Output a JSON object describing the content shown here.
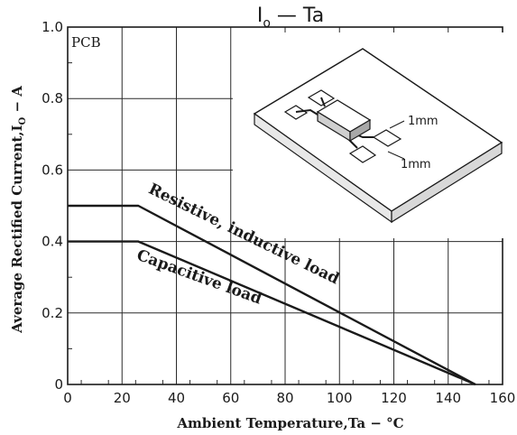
{
  "chart_data": {
    "type": "line",
    "title": {
      "main": "I",
      "sub": "o",
      "rest": "  —  Ta"
    },
    "xlabel": "Ambient Temperature,Ta − °C",
    "ylabel": {
      "main": "Average Rectified Current,I",
      "sub": "O",
      "rest": " − A"
    },
    "xlim": [
      0,
      160
    ],
    "ylim": [
      0,
      1.0
    ],
    "xticks": [
      0,
      20,
      40,
      60,
      80,
      100,
      120,
      140,
      160
    ],
    "xtick_labels": [
      "0",
      "20",
      "40",
      "60",
      "80",
      "100",
      "120",
      "140",
      "160"
    ],
    "yticks": [
      0,
      0.2,
      0.4,
      0.6,
      0.8,
      1.0
    ],
    "ytick_labels": [
      "0",
      "0.2",
      "0.4",
      "0.6",
      "0.8",
      "1.0"
    ],
    "grid": true,
    "series": [
      {
        "name": "Resistive, inductive load",
        "x": [
          0,
          26,
          150
        ],
        "y": [
          0.5,
          0.5,
          0.0
        ]
      },
      {
        "name": "Capacitive load",
        "x": [
          0,
          26,
          150
        ],
        "y": [
          0.4,
          0.4,
          0.0
        ]
      }
    ],
    "annotations": {
      "board_label": "PCB",
      "pad_dim_1": "1mm",
      "pad_dim_2": "1mm"
    },
    "colors": {
      "line": "#1a1a1a",
      "grid": "#2a2a2a",
      "background": "#ffffff"
    }
  }
}
